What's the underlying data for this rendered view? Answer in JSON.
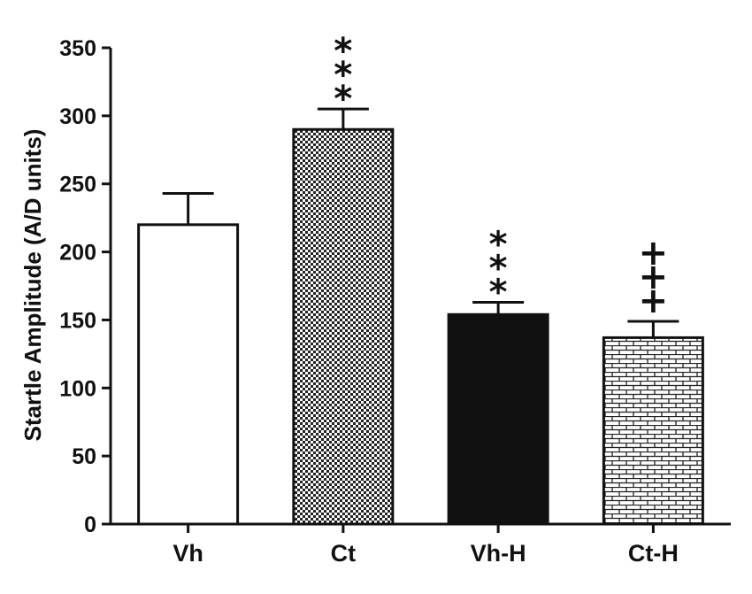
{
  "chart_data": {
    "type": "bar",
    "title": "",
    "xlabel": "",
    "ylabel": "Startle Amplitude (A/D units)",
    "ylim": [
      0,
      350
    ],
    "yticks": [
      0,
      50,
      100,
      150,
      200,
      250,
      300,
      350
    ],
    "grid": false,
    "categories": [
      "Vh",
      "Ct",
      "Vh-H",
      "Ct-H"
    ],
    "values": [
      220,
      290,
      154,
      137
    ],
    "error_upper": [
      243,
      305,
      163,
      149
    ],
    "fills": [
      "white",
      "checker",
      "solid-black",
      "brick"
    ],
    "annotations": [
      "***",
      "***",
      "***",
      "+++"
    ],
    "annotation_bars": [
      1,
      1,
      2,
      3
    ],
    "colors": {
      "outline": "#111111",
      "fill_dark": "#111111",
      "fill_light": "#ffffff"
    }
  }
}
